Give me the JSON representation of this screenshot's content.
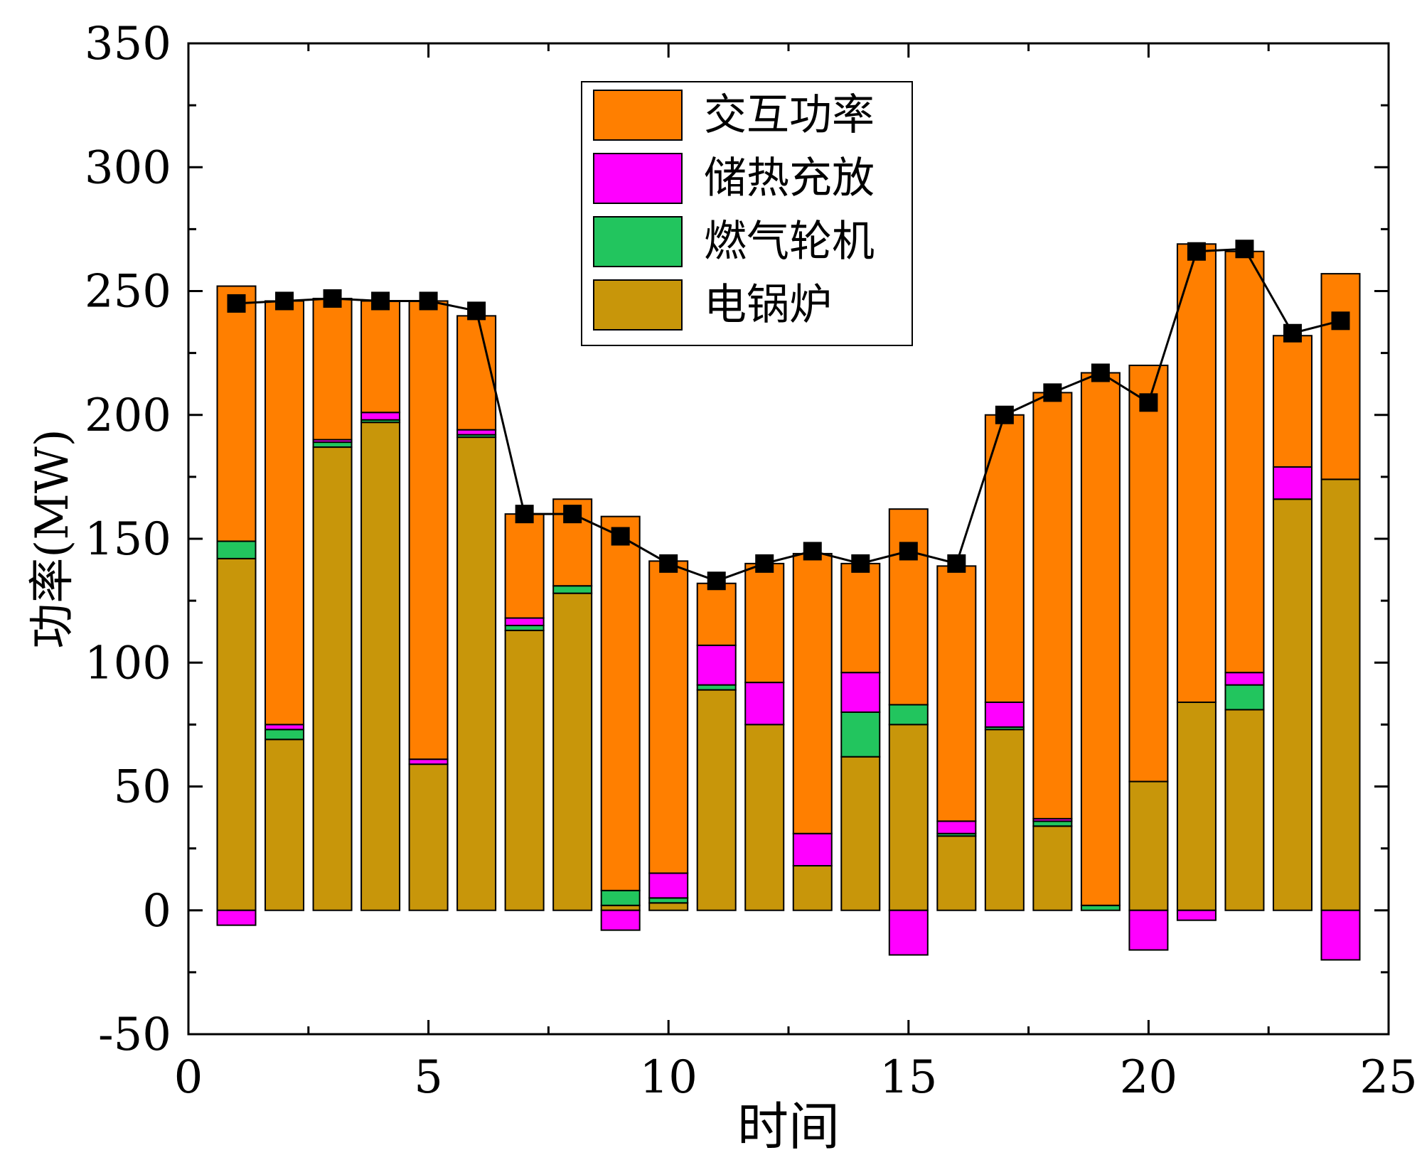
{
  "chart_data": {
    "type": "bar",
    "stacked": true,
    "xlabel": "时间",
    "ylabel": "功率(MW)",
    "xlim": [
      0,
      25
    ],
    "ylim": [
      -50,
      350
    ],
    "x_ticks": [
      0,
      5,
      10,
      15,
      20,
      25
    ],
    "y_ticks": [
      -50,
      0,
      50,
      100,
      150,
      200,
      250,
      300,
      350
    ],
    "grid": false,
    "legend_position": "top-center",
    "x": [
      1,
      2,
      3,
      4,
      5,
      6,
      7,
      8,
      9,
      10,
      11,
      12,
      13,
      14,
      15,
      16,
      17,
      18,
      19,
      20,
      21,
      22,
      23,
      24
    ],
    "series": [
      {
        "name": "电锅炉",
        "color": "#C8960A",
        "values": [
          142,
          69,
          187,
          197,
          59,
          191,
          113,
          128,
          2,
          3,
          89,
          75,
          18,
          62,
          75,
          30,
          73,
          34,
          0,
          52,
          84,
          81,
          166,
          174
        ]
      },
      {
        "name": "燃气轮机",
        "color": "#22C55E",
        "values": [
          7,
          4,
          2,
          1,
          0,
          1,
          2,
          3,
          6,
          2,
          2,
          0,
          0,
          18,
          8,
          1,
          1,
          2,
          2,
          0,
          0,
          10,
          0,
          0
        ]
      },
      {
        "name": "储热充放",
        "color": "#FF00FF",
        "values": [
          -6,
          2,
          1,
          3,
          2,
          2,
          3,
          0,
          -8,
          10,
          16,
          17,
          13,
          16,
          -18,
          5,
          10,
          1,
          0,
          -16,
          -4,
          5,
          13,
          -20
        ]
      },
      {
        "name": "交互功率",
        "color": "#FF7F00",
        "values": [
          103,
          171,
          57,
          45,
          185,
          46,
          42,
          35,
          151,
          126,
          25,
          48,
          113,
          44,
          79,
          103,
          116,
          172,
          215,
          168,
          185,
          170,
          53,
          83
        ]
      }
    ],
    "load_line": {
      "marker": "square",
      "color": "#000000",
      "values": [
        245,
        246,
        247,
        246,
        246,
        242,
        160,
        160,
        151,
        140,
        133,
        140,
        145,
        140,
        145,
        140,
        200,
        209,
        217,
        205,
        266,
        267,
        233,
        238
      ]
    }
  }
}
